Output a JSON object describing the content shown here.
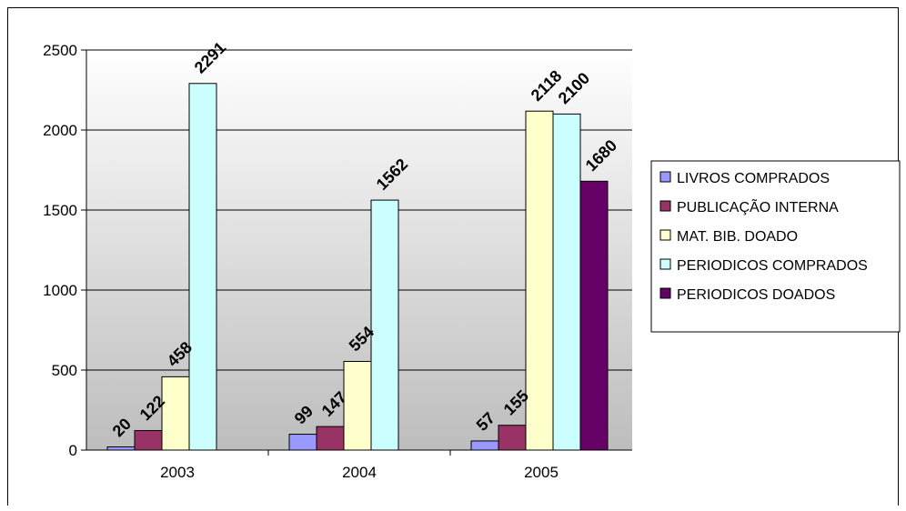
{
  "chart_data": {
    "type": "bar",
    "title": "",
    "xlabel": "",
    "ylabel": "",
    "categories": [
      "2003",
      "2004",
      "2005"
    ],
    "ylim": [
      0,
      2500
    ],
    "yticks": [
      0,
      500,
      1000,
      1500,
      2000,
      2500
    ],
    "grid": true,
    "legend_position": "right",
    "series": [
      {
        "name": "LIVROS COMPRADOS",
        "color": "#9999ff",
        "values": [
          20,
          99,
          57
        ]
      },
      {
        "name": "PUBLICAÇÃO INTERNA",
        "color": "#993366",
        "values": [
          122,
          147,
          155
        ]
      },
      {
        "name": "MAT. BIB. DOADO",
        "color": "#ffffcc",
        "values": [
          458,
          554,
          2118
        ]
      },
      {
        "name": "PERIODICOS COMPRADOS",
        "color": "#ccffff",
        "values": [
          2291,
          1562,
          2100
        ]
      },
      {
        "name": "PERIODICOS DOADOS",
        "color": "#660066",
        "values": [
          null,
          null,
          1680
        ]
      }
    ]
  }
}
